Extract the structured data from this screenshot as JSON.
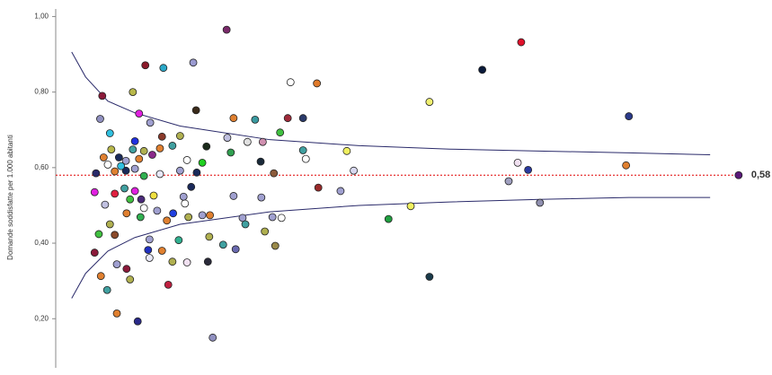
{
  "chart_data": {
    "type": "scatter",
    "y_label": "Domande soddisfatte per 1.000 abitanti",
    "xlim": [
      0,
      100
    ],
    "ylim": [
      0.07,
      1.02
    ],
    "yticks": [
      {
        "value": 0.2,
        "label": "0,20"
      },
      {
        "value": 0.4,
        "label": "0,40"
      },
      {
        "value": 0.6,
        "label": "0,60"
      },
      {
        "value": 0.8,
        "label": "0,80"
      },
      {
        "value": 1.0,
        "label": "1,00"
      }
    ],
    "reference_line": {
      "value": 0.58,
      "value_label": "0,58",
      "x": 98.3,
      "color": "#e00000",
      "marker_color": "#5a1a7a"
    },
    "limits": {
      "color": "#2a2a6a",
      "x": [
        2.3,
        4.3,
        7.5,
        11.4,
        17.9,
        30.8,
        43.7,
        56.7,
        69.6,
        82.5,
        94.2
      ],
      "upper": [
        0.906,
        0.84,
        0.776,
        0.745,
        0.71,
        0.674,
        0.658,
        0.649,
        0.644,
        0.639,
        0.634
      ],
      "lower": [
        0.254,
        0.32,
        0.379,
        0.415,
        0.45,
        0.483,
        0.5,
        0.509,
        0.516,
        0.521,
        0.521
      ]
    },
    "x": [
      67.0,
      61.4,
      24.6,
      19.8,
      12.9,
      15.5,
      33.8,
      37.6,
      53.8,
      82.5,
      11.1,
      6.7,
      20.2,
      12.0,
      6.4,
      25.6,
      28.7,
      33.4,
      35.6,
      13.6,
      7.8,
      11.4,
      17.9,
      15.3,
      32.3,
      29.8,
      27.6,
      24.7,
      21.7,
      35.6,
      41.9,
      36.0,
      25.2,
      8.0,
      15.0,
      16.8,
      18.9,
      21.1,
      29.5,
      31.4,
      42.9,
      37.8,
      41.0,
      25.6,
      29.6,
      66.5,
      68.0,
      65.2,
      69.7,
      82.1,
      47.9,
      51.1,
      53.8,
      32.5,
      31.2,
      26.9,
      27.3,
      30.1,
      31.6,
      24.1,
      25.9,
      22.1,
      21.9,
      22.6,
      11.8,
      8.8,
      7.4,
      6.5,
      5.6,
      6.2,
      5.8,
      5.6,
      7.1,
      7.8,
      8.8,
      10.7,
      10.2,
      16.2,
      18.9,
      16.8,
      15.3,
      17.7,
      13.5,
      13.3,
      13.5,
      16.0,
      16.9,
      19.1,
      21.1,
      22.2,
      18.6,
      18.4,
      19.5,
      17.9,
      20.3,
      15.0,
      12.7,
      11.4,
      10.1,
      8.5,
      7.5,
      6.9,
      9.1,
      10.1,
      12.0,
      12.7,
      13.9,
      11.1,
      9.4,
      8.5,
      9.9,
      11.4,
      12.3,
      14.1,
      10.7,
      12.7,
      14.6,
      12.2,
      10.2,
      8.5
    ],
    "values": [
      0.932,
      0.859,
      0.965,
      0.878,
      0.871,
      0.864,
      0.826,
      0.823,
      0.774,
      0.736,
      0.8,
      0.79,
      0.752,
      0.743,
      0.729,
      0.731,
      0.727,
      0.731,
      0.731,
      0.719,
      0.691,
      0.67,
      0.684,
      0.682,
      0.693,
      0.668,
      0.668,
      0.679,
      0.656,
      0.646,
      0.644,
      0.623,
      0.64,
      0.648,
      0.651,
      0.658,
      0.62,
      0.613,
      0.616,
      0.585,
      0.592,
      0.547,
      0.538,
      0.525,
      0.521,
      0.613,
      0.594,
      0.564,
      0.507,
      0.606,
      0.464,
      0.498,
      0.311,
      0.467,
      0.469,
      0.467,
      0.45,
      0.431,
      0.393,
      0.396,
      0.384,
      0.417,
      0.351,
      0.15,
      0.193,
      0.214,
      0.276,
      0.313,
      0.375,
      0.424,
      0.585,
      0.535,
      0.502,
      0.45,
      0.344,
      0.304,
      0.332,
      0.29,
      0.349,
      0.351,
      0.38,
      0.408,
      0.361,
      0.382,
      0.41,
      0.46,
      0.479,
      0.469,
      0.474,
      0.474,
      0.505,
      0.523,
      0.549,
      0.592,
      0.587,
      0.583,
      0.578,
      0.597,
      0.592,
      0.59,
      0.608,
      0.627,
      0.627,
      0.618,
      0.623,
      0.644,
      0.634,
      0.648,
      0.604,
      0.531,
      0.545,
      0.538,
      0.516,
      0.526,
      0.516,
      0.493,
      0.486,
      0.469,
      0.479,
      0.422
    ],
    "colors": [
      "#e0102a",
      "#0a1a3a",
      "#7a2a6a",
      "#9a9ad0",
      "#8b1a2a",
      "#2aa8c8",
      "#ffffff",
      "#e07a2a",
      "#f0f070",
      "#2a3a8a",
      "#b8b84a",
      "#8b1a3a",
      "#3a2a1a",
      "#e020e0",
      "#9090c0",
      "#e08030",
      "#3a9aa0",
      "#a02a3a",
      "#2a3a6a",
      "#a0a0d0",
      "#30c0e0",
      "#2030e0",
      "#b0b050",
      "#8a3a2a",
      "#40c040",
      "#d090b0",
      "#e0e0e0",
      "#c0c0e0",
      "#1a2a1a",
      "#40a0a0",
      "#f0f060",
      "#ffffff",
      "#30a050",
      "#b8b84a",
      "#e08030",
      "#40a0a0",
      "#ffffff",
      "#20d020",
      "#1a2a3a",
      "#8a5a3a",
      "#d8d8f0",
      "#9a2a2a",
      "#a0a0d0",
      "#a0a0d0",
      "#a0a0d0",
      "#f0e0f0",
      "#2a3aa0",
      "#a0a0c0",
      "#9090b0",
      "#e08030",
      "#20a040",
      "#f0f060",
      "#1a3a4a",
      "#ffffff",
      "#a0a0d0",
      "#a0a0d0",
      "#40a0a0",
      "#b0b050",
      "#9a8a4a",
      "#40a0a0",
      "#6a6ab0",
      "#b0b050",
      "#2a2a3a",
      "#9090c0",
      "#2a2a8a",
      "#e08030",
      "#40a0a0",
      "#e08030",
      "#8b1a3a",
      "#40c040",
      "#2a2a6a",
      "#e020e0",
      "#c0c0e0",
      "#b0b050",
      "#a0a0d0",
      "#b0b050",
      "#8b1a3a",
      "#c02040",
      "#f0e0f0",
      "#b0b050",
      "#e08030",
      "#30b090",
      "#e8e8f8",
      "#2030c0",
      "#a0a0d0",
      "#e08030",
      "#2040e0",
      "#b0b050",
      "#a0a0d0",
      "#e08030",
      "#ffffff",
      "#a0a0d0",
      "#1a2a5a",
      "#a0a0d0",
      "#1a2a5a",
      "#e8e8f8",
      "#30b050",
      "#a0a0d0",
      "#1a2a5a",
      "#e08030",
      "#ffffff",
      "#e08030",
      "#1a2a5a",
      "#a0a0d0",
      "#e08030",
      "#b0b050",
      "#8a2a8a",
      "#40a0a0",
      "#30c0e0",
      "#e02040",
      "#40a0a0",
      "#e020e0",
      "#4a2a7a",
      "#f0e040",
      "#40c040",
      "#ffffff",
      "#a0a0d0",
      "#30b050",
      "#e08030",
      "#8a4a2a"
    ]
  }
}
